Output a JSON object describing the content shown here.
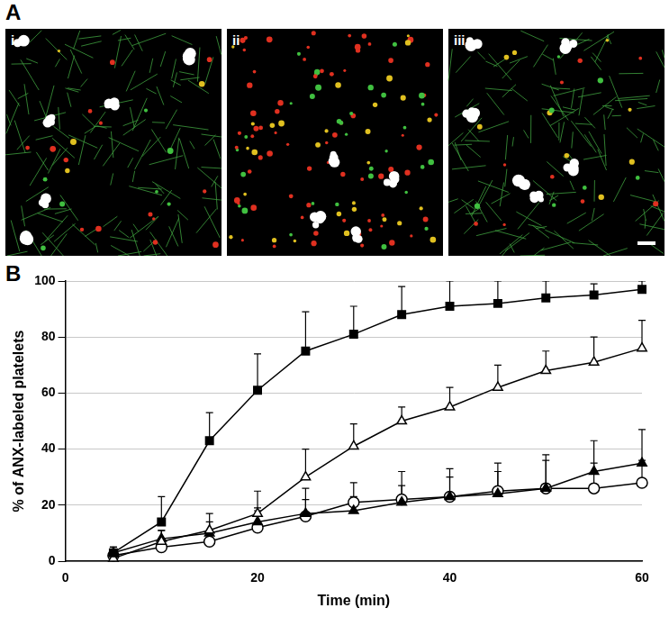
{
  "figure": {
    "panel_labels": [
      "A",
      "B"
    ],
    "image_labels": [
      "i",
      "ii",
      "iii"
    ]
  },
  "chart_data": {
    "type": "line",
    "x_label": "Time (min)",
    "y_label": "% of ANX-labeled platelets",
    "xlim": [
      0,
      60
    ],
    "xticks": [
      0,
      20,
      40,
      60
    ],
    "ylim": [
      0,
      100
    ],
    "yticks": [
      0,
      20,
      40,
      60,
      80,
      100
    ],
    "grid": true,
    "x": [
      5,
      10,
      15,
      20,
      25,
      30,
      35,
      40,
      45,
      50,
      55,
      60
    ],
    "series": [
      {
        "color": "#000000",
        "marker": "square",
        "values": [
          3,
          14,
          43,
          61,
          75,
          81,
          88,
          91,
          92,
          94,
          95,
          97
        ],
        "errors": [
          2,
          9,
          10,
          13,
          14,
          10,
          10,
          9,
          8,
          6,
          4,
          3
        ]
      },
      {
        "color": "#000000",
        "marker": "triangle_open",
        "values": [
          1,
          7,
          11,
          17,
          30,
          41,
          50,
          55,
          62,
          68,
          71,
          76
        ],
        "errors": [
          1,
          4,
          6,
          8,
          10,
          8,
          5,
          7,
          8,
          7,
          9,
          10
        ]
      },
      {
        "color": "#000000",
        "marker": "triangle",
        "values": [
          3,
          8,
          10,
          14,
          17,
          18,
          21,
          23,
          24,
          26,
          32,
          35
        ],
        "errors": [
          2,
          3,
          4,
          5,
          5,
          5,
          6,
          7,
          8,
          10,
          11,
          12
        ]
      },
      {
        "color": "#000000",
        "marker": "circle_open",
        "values": [
          2,
          5,
          7,
          12,
          16,
          21,
          22,
          23,
          25,
          26,
          26,
          28
        ],
        "errors": [
          1,
          3,
          3,
          6,
          10,
          7,
          10,
          10,
          10,
          12,
          9,
          8
        ]
      }
    ]
  }
}
